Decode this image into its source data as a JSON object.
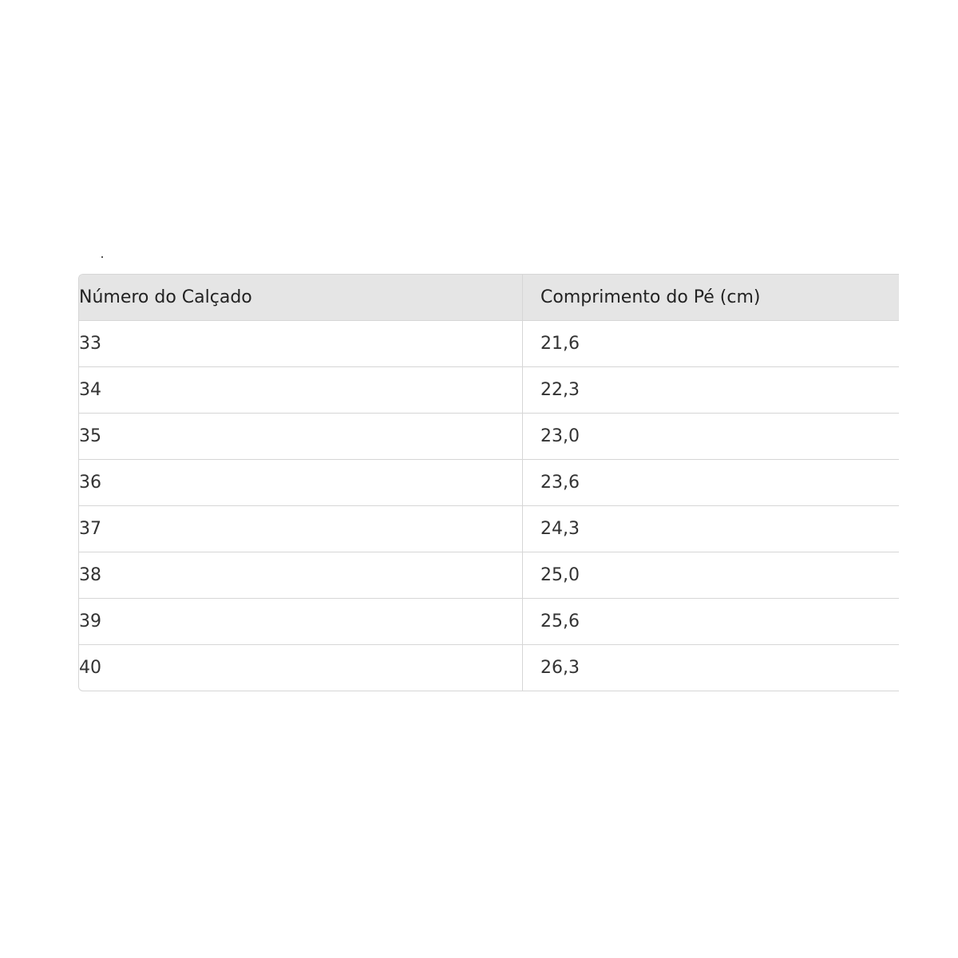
{
  "table": {
    "headers": [
      "Número do Calçado",
      "Comprimento do Pé (cm)"
    ],
    "rows": [
      [
        "33",
        "21,6"
      ],
      [
        "34",
        "22,3"
      ],
      [
        "35",
        "23,0"
      ],
      [
        "36",
        "23,6"
      ],
      [
        "37",
        "24,3"
      ],
      [
        "38",
        "25,0"
      ],
      [
        "39",
        "25,6"
      ],
      [
        "40",
        "26,3"
      ]
    ]
  }
}
